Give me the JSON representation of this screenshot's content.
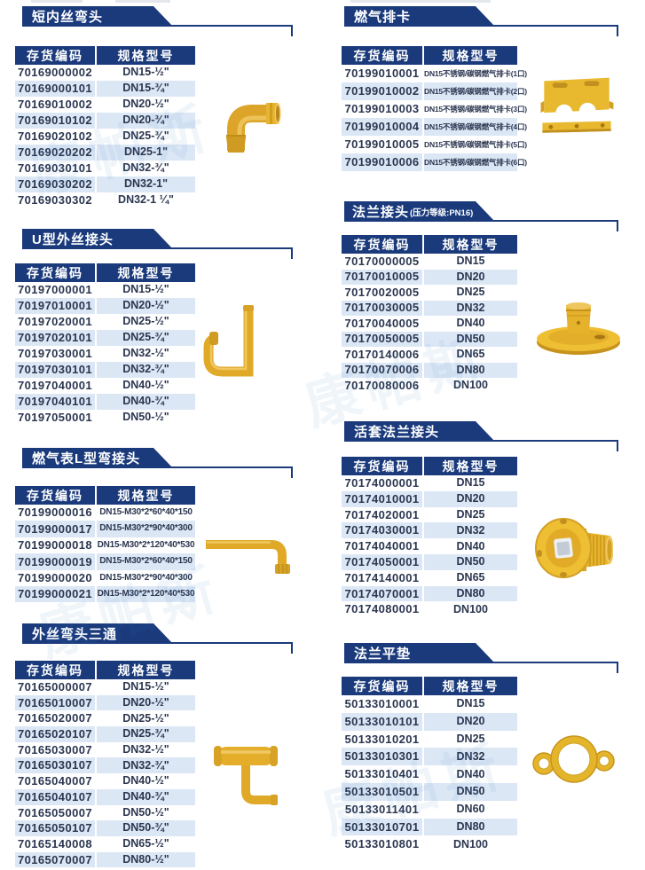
{
  "page": {
    "accent_navy": "#1a3a7c",
    "row_alt_blue": "#dbe7f5",
    "brass_yellow": "#e5b42b",
    "watermark_text": "康帕斯"
  },
  "sections": {
    "short_elbow": {
      "title": "短内丝弯头",
      "table": {
        "headers": [
          "存货编码",
          "规格型号"
        ],
        "rows": [
          [
            "70169000002",
            "DN15-½\""
          ],
          [
            "70169000101",
            "DN15-¾\""
          ],
          [
            "70169010002",
            "DN20-½\""
          ],
          [
            "70169010102",
            "DN20-¾\""
          ],
          [
            "70169020102",
            "DN25-¾\""
          ],
          [
            "70169020202",
            "DN25-1\""
          ],
          [
            "70169030101",
            "DN32-¾\""
          ],
          [
            "70169030202",
            "DN32-1\""
          ],
          [
            "70169030302",
            "DN32-1 ¼\""
          ]
        ]
      }
    },
    "gas_clamp": {
      "title": "燃气排卡",
      "table": {
        "headers": [
          "存货编码",
          "规格型号"
        ],
        "rows": [
          [
            "70199010001",
            "DN15不锈钢/碳钢燃气排卡(1口)"
          ],
          [
            "70199010002",
            "DN15不锈钢/碳钢燃气排卡(2口)"
          ],
          [
            "70199010003",
            "DN15不锈钢/碳钢燃气排卡(3口)"
          ],
          [
            "70199010004",
            "DN15不锈钢/碳钢燃气排卡(4口)"
          ],
          [
            "70199010005",
            "DN15不锈钢/碳钢燃气排卡(5口)"
          ],
          [
            "70199010006",
            "DN15不锈钢/碳钢燃气排卡(6口)"
          ]
        ]
      }
    },
    "u_joint": {
      "title": "U型外丝接头",
      "table": {
        "headers": [
          "存货编码",
          "规格型号"
        ],
        "rows": [
          [
            "70197000001",
            "DN15-½\""
          ],
          [
            "70197010001",
            "DN20-½\""
          ],
          [
            "70197020001",
            "DN25-½\""
          ],
          [
            "70197020101",
            "DN25-¾\""
          ],
          [
            "70197030001",
            "DN32-½\""
          ],
          [
            "70197030101",
            "DN32-¾\""
          ],
          [
            "70197040001",
            "DN40-½\""
          ],
          [
            "70197040101",
            "DN40-¾\""
          ],
          [
            "70197050001",
            "DN50-½\""
          ]
        ]
      }
    },
    "flange_joint": {
      "title": "法兰接头",
      "suffix": "(压力等级:PN16)",
      "table": {
        "headers": [
          "存货编码",
          "规格型号"
        ],
        "rows": [
          [
            "70170000005",
            "DN15"
          ],
          [
            "70170010005",
            "DN20"
          ],
          [
            "70170020005",
            "DN25"
          ],
          [
            "70170030005",
            "DN32"
          ],
          [
            "70170040005",
            "DN40"
          ],
          [
            "70170050005",
            "DN50"
          ],
          [
            "70170140006",
            "DN65"
          ],
          [
            "70170070006",
            "DN80"
          ],
          [
            "70170080006",
            "DN100"
          ]
        ]
      }
    },
    "meter_l_joint": {
      "title": "燃气表L型弯接头",
      "table": {
        "headers": [
          "存货编码",
          "规格型号"
        ],
        "rows": [
          [
            "70199000016",
            "DN15-M30*2*60*40*150"
          ],
          [
            "70199000017",
            "DN15-M30*2*90*40*300"
          ],
          [
            "70199000018",
            "DN15-M30*2*120*40*530"
          ],
          [
            "70199000019",
            "DN15-M30*2*60*40*150"
          ],
          [
            "70199000020",
            "DN15-M30*2*90*40*300"
          ],
          [
            "70199000021",
            "DN15-M30*2*120*40*530"
          ]
        ]
      }
    },
    "loose_flange": {
      "title": "活套法兰接头",
      "table": {
        "headers": [
          "存货编码",
          "规格型号"
        ],
        "rows": [
          [
            "70174000001",
            "DN15"
          ],
          [
            "70174010001",
            "DN20"
          ],
          [
            "70174020001",
            "DN25"
          ],
          [
            "70174030001",
            "DN32"
          ],
          [
            "70174040001",
            "DN40"
          ],
          [
            "70174050001",
            "DN50"
          ],
          [
            "70174140001",
            "DN65"
          ],
          [
            "70174070001",
            "DN80"
          ],
          [
            "70174080001",
            "DN100"
          ]
        ]
      }
    },
    "elbow_tee": {
      "title": "外丝弯头三通",
      "table": {
        "headers": [
          "存货编码",
          "规格型号"
        ],
        "rows": [
          [
            "70165000007",
            "DN15-½\""
          ],
          [
            "70165010007",
            "DN20-½\""
          ],
          [
            "70165020007",
            "DN25-½\""
          ],
          [
            "70165020107",
            "DN25-¾\""
          ],
          [
            "70165030007",
            "DN32-½\""
          ],
          [
            "70165030107",
            "DN32-¾\""
          ],
          [
            "70165040007",
            "DN40-½\""
          ],
          [
            "70165040107",
            "DN40-¾\""
          ],
          [
            "70165050007",
            "DN50-½\""
          ],
          [
            "70165050107",
            "DN50-¾\""
          ],
          [
            "70165140008",
            "DN65-½\""
          ],
          [
            "70165070007",
            "DN80-½\""
          ]
        ]
      }
    },
    "flange_gasket": {
      "title": "法兰平垫",
      "table": {
        "headers": [
          "存货编码",
          "规格型号"
        ],
        "rows": [
          [
            "50133010001",
            "DN15"
          ],
          [
            "50133010101",
            "DN20"
          ],
          [
            "50133010201",
            "DN25"
          ],
          [
            "50133010301",
            "DN32"
          ],
          [
            "50133010401",
            "DN40"
          ],
          [
            "50133010501",
            "DN50"
          ],
          [
            "50133011401",
            "DN60"
          ],
          [
            "50133010701",
            "DN80"
          ],
          [
            "50133010801",
            "DN100"
          ]
        ]
      }
    }
  }
}
